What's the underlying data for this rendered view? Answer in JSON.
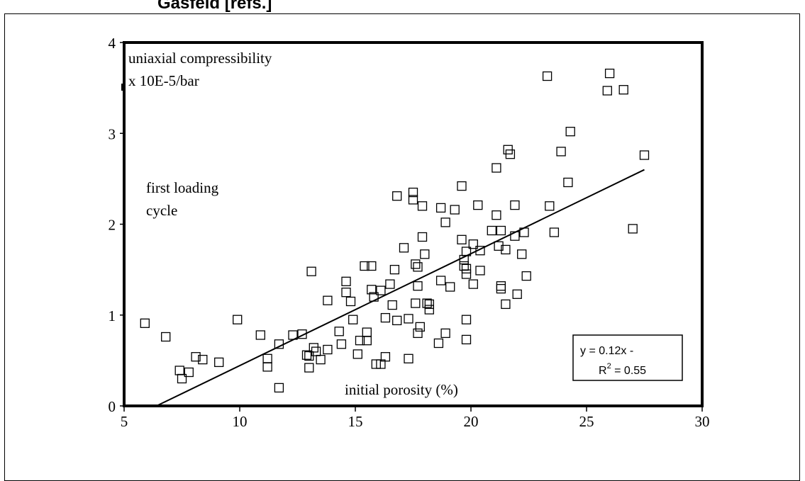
{
  "page": {
    "heading": "Gasfeld [refs.]"
  },
  "chart_data": {
    "type": "scatter",
    "title": "",
    "ylabel": "uniaxial compressibility",
    "ylabel_unit": "x 10E-5/bar",
    "xlabel": "initial porosity (%)",
    "annotation": "first loading cycle",
    "xlim": [
      5,
      30
    ],
    "ylim": [
      0,
      4
    ],
    "x_ticks": [
      "5",
      "10",
      "15",
      "20",
      "25",
      "30"
    ],
    "y_ticks": [
      "0",
      "1",
      "2",
      "3",
      "4"
    ],
    "marker": "open-square",
    "trendline": {
      "slope": 0.12,
      "x_range": [
        6.4,
        27.5
      ],
      "y_range": [
        0,
        2.6
      ]
    },
    "equation_box": {
      "line1": "y = 0.12x -",
      "line2": "R",
      "sup": "2",
      "line2_rest": " = 0.55"
    },
    "points": [
      [
        5.9,
        0.91
      ],
      [
        6.8,
        0.76
      ],
      [
        7.4,
        0.39
      ],
      [
        7.5,
        0.3
      ],
      [
        7.8,
        0.37
      ],
      [
        8.1,
        0.54
      ],
      [
        8.4,
        0.51
      ],
      [
        9.1,
        0.48
      ],
      [
        9.9,
        0.95
      ],
      [
        10.9,
        0.78
      ],
      [
        11.2,
        0.52
      ],
      [
        11.2,
        0.43
      ],
      [
        11.7,
        0.2
      ],
      [
        11.7,
        0.68
      ],
      [
        12.3,
        0.78
      ],
      [
        12.7,
        0.79
      ],
      [
        12.9,
        0.56
      ],
      [
        13.0,
        0.55
      ],
      [
        13.0,
        0.42
      ],
      [
        13.1,
        1.48
      ],
      [
        13.2,
        0.64
      ],
      [
        13.3,
        0.6
      ],
      [
        13.5,
        0.51
      ],
      [
        13.8,
        0.62
      ],
      [
        13.8,
        1.16
      ],
      [
        14.3,
        0.82
      ],
      [
        14.4,
        0.68
      ],
      [
        14.6,
        1.37
      ],
      [
        14.6,
        1.25
      ],
      [
        14.8,
        1.15
      ],
      [
        14.9,
        0.95
      ],
      [
        15.1,
        0.57
      ],
      [
        15.2,
        0.72
      ],
      [
        15.4,
        1.54
      ],
      [
        15.5,
        0.81
      ],
      [
        15.5,
        0.72
      ],
      [
        15.7,
        1.54
      ],
      [
        15.7,
        1.28
      ],
      [
        15.8,
        1.2
      ],
      [
        15.9,
        0.46
      ],
      [
        16.1,
        0.46
      ],
      [
        16.1,
        1.27
      ],
      [
        16.3,
        0.97
      ],
      [
        16.3,
        0.54
      ],
      [
        16.5,
        1.34
      ],
      [
        16.6,
        1.11
      ],
      [
        16.7,
        1.5
      ],
      [
        16.8,
        0.94
      ],
      [
        16.8,
        2.31
      ],
      [
        17.1,
        1.74
      ],
      [
        17.3,
        0.96
      ],
      [
        17.3,
        0.52
      ],
      [
        17.5,
        2.35
      ],
      [
        17.5,
        2.27
      ],
      [
        17.6,
        1.56
      ],
      [
        17.6,
        1.13
      ],
      [
        17.7,
        1.53
      ],
      [
        17.7,
        0.8
      ],
      [
        17.7,
        1.32
      ],
      [
        17.8,
        0.87
      ],
      [
        17.9,
        1.86
      ],
      [
        17.9,
        2.2
      ],
      [
        18.0,
        1.67
      ],
      [
        18.1,
        1.13
      ],
      [
        18.2,
        1.12
      ],
      [
        18.2,
        1.06
      ],
      [
        18.6,
        0.69
      ],
      [
        18.7,
        1.38
      ],
      [
        18.7,
        2.18
      ],
      [
        18.9,
        0.8
      ],
      [
        18.9,
        2.02
      ],
      [
        19.1,
        1.31
      ],
      [
        19.3,
        2.16
      ],
      [
        19.6,
        2.42
      ],
      [
        19.6,
        1.83
      ],
      [
        19.7,
        1.61
      ],
      [
        19.7,
        1.54
      ],
      [
        19.8,
        1.51
      ],
      [
        19.8,
        1.7
      ],
      [
        19.8,
        0.95
      ],
      [
        19.8,
        0.73
      ],
      [
        19.8,
        1.45
      ],
      [
        20.1,
        1.34
      ],
      [
        20.1,
        1.78
      ],
      [
        20.3,
        2.21
      ],
      [
        20.4,
        1.71
      ],
      [
        20.4,
        1.49
      ],
      [
        20.9,
        1.93
      ],
      [
        21.1,
        2.1
      ],
      [
        21.1,
        2.62
      ],
      [
        21.2,
        1.76
      ],
      [
        21.3,
        1.93
      ],
      [
        21.3,
        1.32
      ],
      [
        21.3,
        1.29
      ],
      [
        21.5,
        1.72
      ],
      [
        21.5,
        1.12
      ],
      [
        21.6,
        2.82
      ],
      [
        21.7,
        2.77
      ],
      [
        21.9,
        2.21
      ],
      [
        21.9,
        1.87
      ],
      [
        22.0,
        1.23
      ],
      [
        22.2,
        1.67
      ],
      [
        22.3,
        1.91
      ],
      [
        22.4,
        1.43
      ],
      [
        23.3,
        3.63
      ],
      [
        23.4,
        2.2
      ],
      [
        23.6,
        1.91
      ],
      [
        23.9,
        2.8
      ],
      [
        24.2,
        2.46
      ],
      [
        24.3,
        3.02
      ],
      [
        25.9,
        3.47
      ],
      [
        26.0,
        3.66
      ],
      [
        26.6,
        3.48
      ],
      [
        27.0,
        1.95
      ],
      [
        27.5,
        2.76
      ]
    ]
  }
}
